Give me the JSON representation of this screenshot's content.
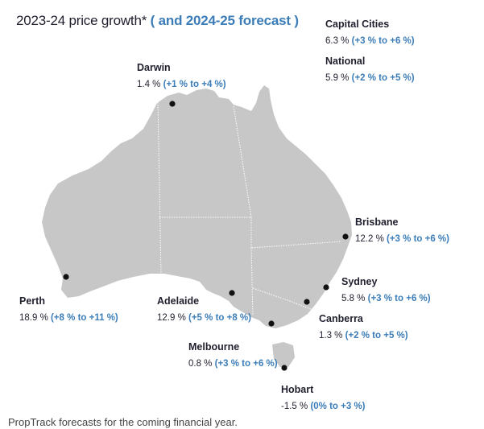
{
  "title": {
    "main": "2023-24 price growth*",
    "forecast": "( and 2024-25 forecast )"
  },
  "colors": {
    "land": "#c7c7c7",
    "border": "#ffffff",
    "forecast": "#3b7db8",
    "marker": "#111111"
  },
  "cities": [
    {
      "id": "darwin",
      "name": "Darwin",
      "value": "1.4 %",
      "forecast": "(+1 % to +4 %)"
    },
    {
      "id": "brisbane",
      "name": "Brisbane",
      "value": "12.2 %",
      "forecast": "(+3 % to +6 %)"
    },
    {
      "id": "sydney",
      "name": "Sydney",
      "value": "5.8 %",
      "forecast": "(+3 % to +6 %)"
    },
    {
      "id": "canberra",
      "name": "Canberra",
      "value": "1.3 %",
      "forecast": "(+2 % to +5 %)"
    },
    {
      "id": "melbourne",
      "name": "Melbourne",
      "value": "0.8 %",
      "forecast": "(+3 % to +6 %)"
    },
    {
      "id": "hobart",
      "name": "Hobart",
      "value": "-1.5 %",
      "forecast": "(0% to +3 %)"
    },
    {
      "id": "adelaide",
      "name": "Adelaide",
      "value": "12.9 %",
      "forecast": "(+5 % to +8 %)"
    },
    {
      "id": "perth",
      "name": "Perth",
      "value": "18.9 %",
      "forecast": "(+8 % to +11 %)"
    }
  ],
  "aggregates": [
    {
      "id": "capital-cities",
      "name": "Capital Cities",
      "value": "6.3 %",
      "forecast": "(+3 % to +6 %)"
    },
    {
      "id": "national",
      "name": "National",
      "value": "5.9 %",
      "forecast": "(+2 % to +5 %)"
    }
  ],
  "caption": "PropTrack forecasts for the coming financial year."
}
